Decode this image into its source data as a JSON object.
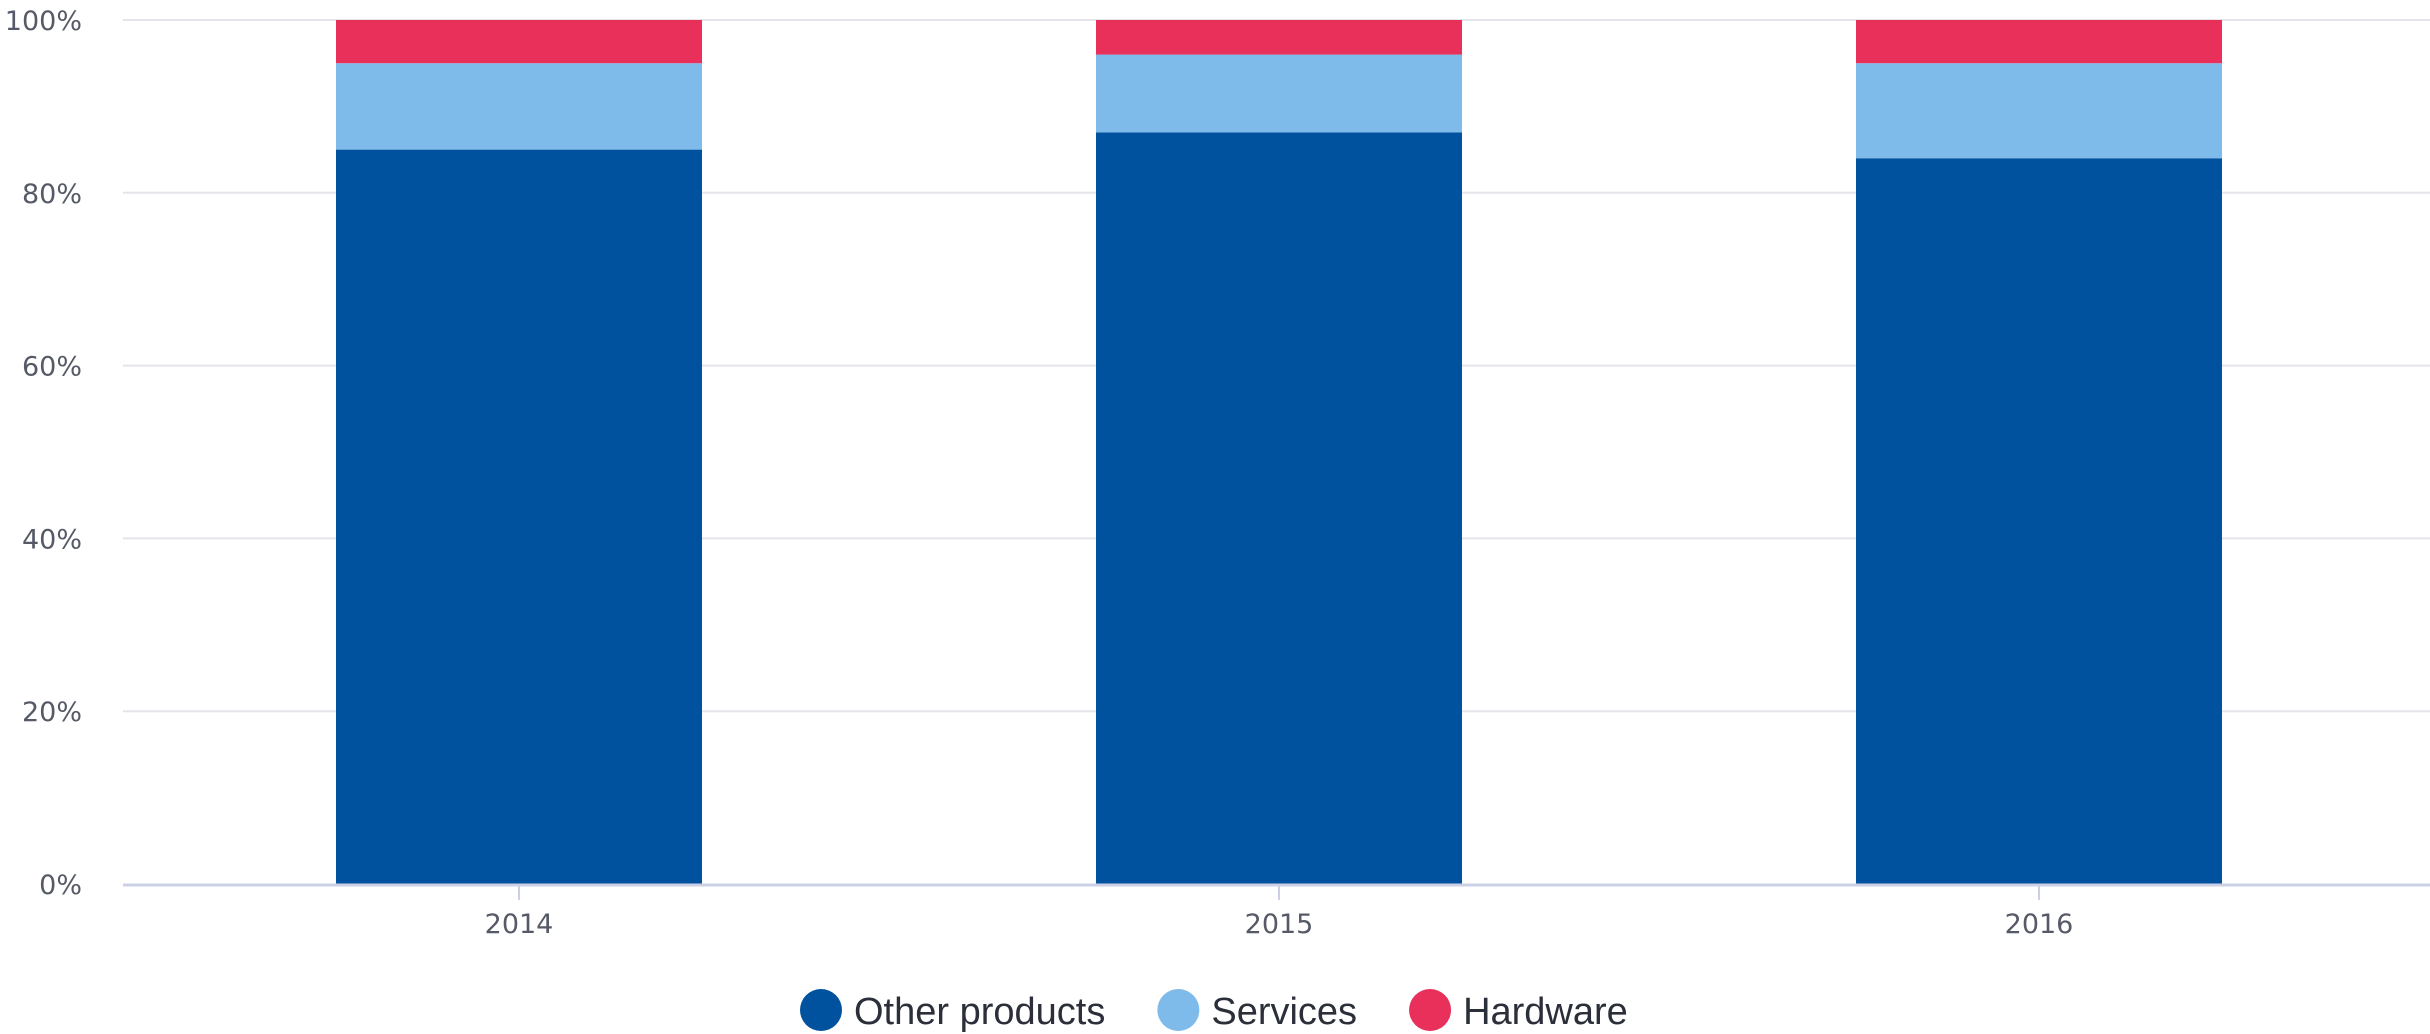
{
  "chart_data": {
    "type": "bar",
    "stacked": true,
    "categories": [
      "2014",
      "2015",
      "2016"
    ],
    "series": [
      {
        "name": "Other products",
        "color": "#00529f",
        "values": [
          85,
          87,
          84
        ]
      },
      {
        "name": "Services",
        "color": "#7fbbea",
        "values": [
          10,
          9,
          11
        ]
      },
      {
        "name": "Hardware",
        "color": "#e8305a",
        "values": [
          5,
          4,
          5
        ]
      }
    ],
    "y_ticks": [
      "0%",
      "20%",
      "40%",
      "60%",
      "80%",
      "100%"
    ],
    "ylim": [
      0,
      100
    ],
    "grid": true,
    "legend_position": "bottom-center"
  }
}
